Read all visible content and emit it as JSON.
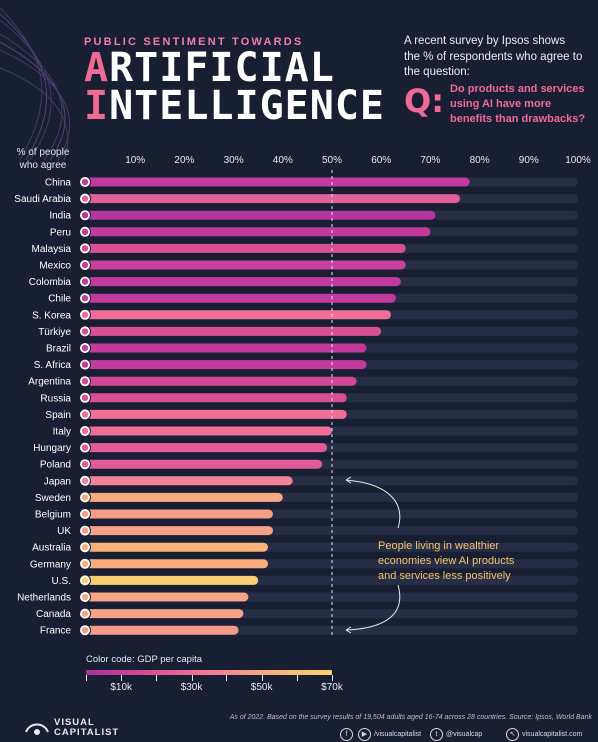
{
  "header": {
    "kicker": "PUBLIC SENTIMENT TOWARDS",
    "title_line1_first": "A",
    "title_line1_rest": "RTIFICIAL",
    "title_line2_first": "I",
    "title_line2_rest": "NTELLIGENCE",
    "intro": "A recent survey by Ipsos shows the % of respondents who agree to the question:",
    "q_mark": "Q:",
    "question": "Do products and services using AI have more benefits than drawbacks?"
  },
  "chart_data": {
    "type": "bar",
    "orientation": "horizontal",
    "ylabel": "% of people who agree",
    "xlim": [
      0,
      100
    ],
    "x_ticks": [
      "10%",
      "20%",
      "30%",
      "40%",
      "50%",
      "60%",
      "70%",
      "80%",
      "90%",
      "100%"
    ],
    "reference_line": 50,
    "categories": [
      "China",
      "Saudi Arabia",
      "India",
      "Peru",
      "Malaysia",
      "Mexico",
      "Colombia",
      "Chile",
      "S. Korea",
      "Türkiye",
      "Brazil",
      "S. Africa",
      "Argentina",
      "Russia",
      "Spain",
      "Italy",
      "Hungary",
      "Poland",
      "Japan",
      "Sweden",
      "Belgium",
      "UK",
      "Australia",
      "Germany",
      "U.S.",
      "Netherlands",
      "Canada",
      "France"
    ],
    "values": [
      78,
      76,
      71,
      70,
      65,
      65,
      64,
      63,
      62,
      60,
      57,
      57,
      55,
      53,
      53,
      50,
      49,
      48,
      42,
      40,
      38,
      38,
      37,
      37,
      35,
      33,
      32,
      31
    ],
    "bar_colors": [
      "#c23a9e",
      "#e0609a",
      "#b4359c",
      "#c23a9e",
      "#d84e97",
      "#c9409c",
      "#c23a9e",
      "#c23a9e",
      "#ef6f99",
      "#d84e97",
      "#c23a9e",
      "#c23a9e",
      "#d04897",
      "#d84e97",
      "#ef6f99",
      "#ef6f99",
      "#e25a97",
      "#e25a97",
      "#f2849a",
      "#f7a981",
      "#f49f86",
      "#f49f86",
      "#f7b27c",
      "#f7ae7c",
      "#f9cf72",
      "#f6a682",
      "#f5a386",
      "#f39b88"
    ],
    "annotation": "People living in wealthier economies view AI products and services less positively",
    "color_legend": {
      "title": "Color code: GDP per capita",
      "labels": [
        "$10k",
        "$30k",
        "$50k",
        "$70k"
      ]
    }
  },
  "footer": {
    "source": "As of 2022. Based on the survey results of 19,504 adults aged 16-74 across 28 countries. Source: Ipsos, World Bank",
    "logo_line1": "VISUAL",
    "logo_line2": "CAPITALIST",
    "social": [
      {
        "icon": "f",
        "label": ""
      },
      {
        "icon": "▶",
        "label": "/visualcapitalist"
      },
      {
        "icon": "t",
        "label": "@visualcap"
      },
      {
        "icon": "↖",
        "label": "visualcapitalist.com"
      }
    ]
  }
}
